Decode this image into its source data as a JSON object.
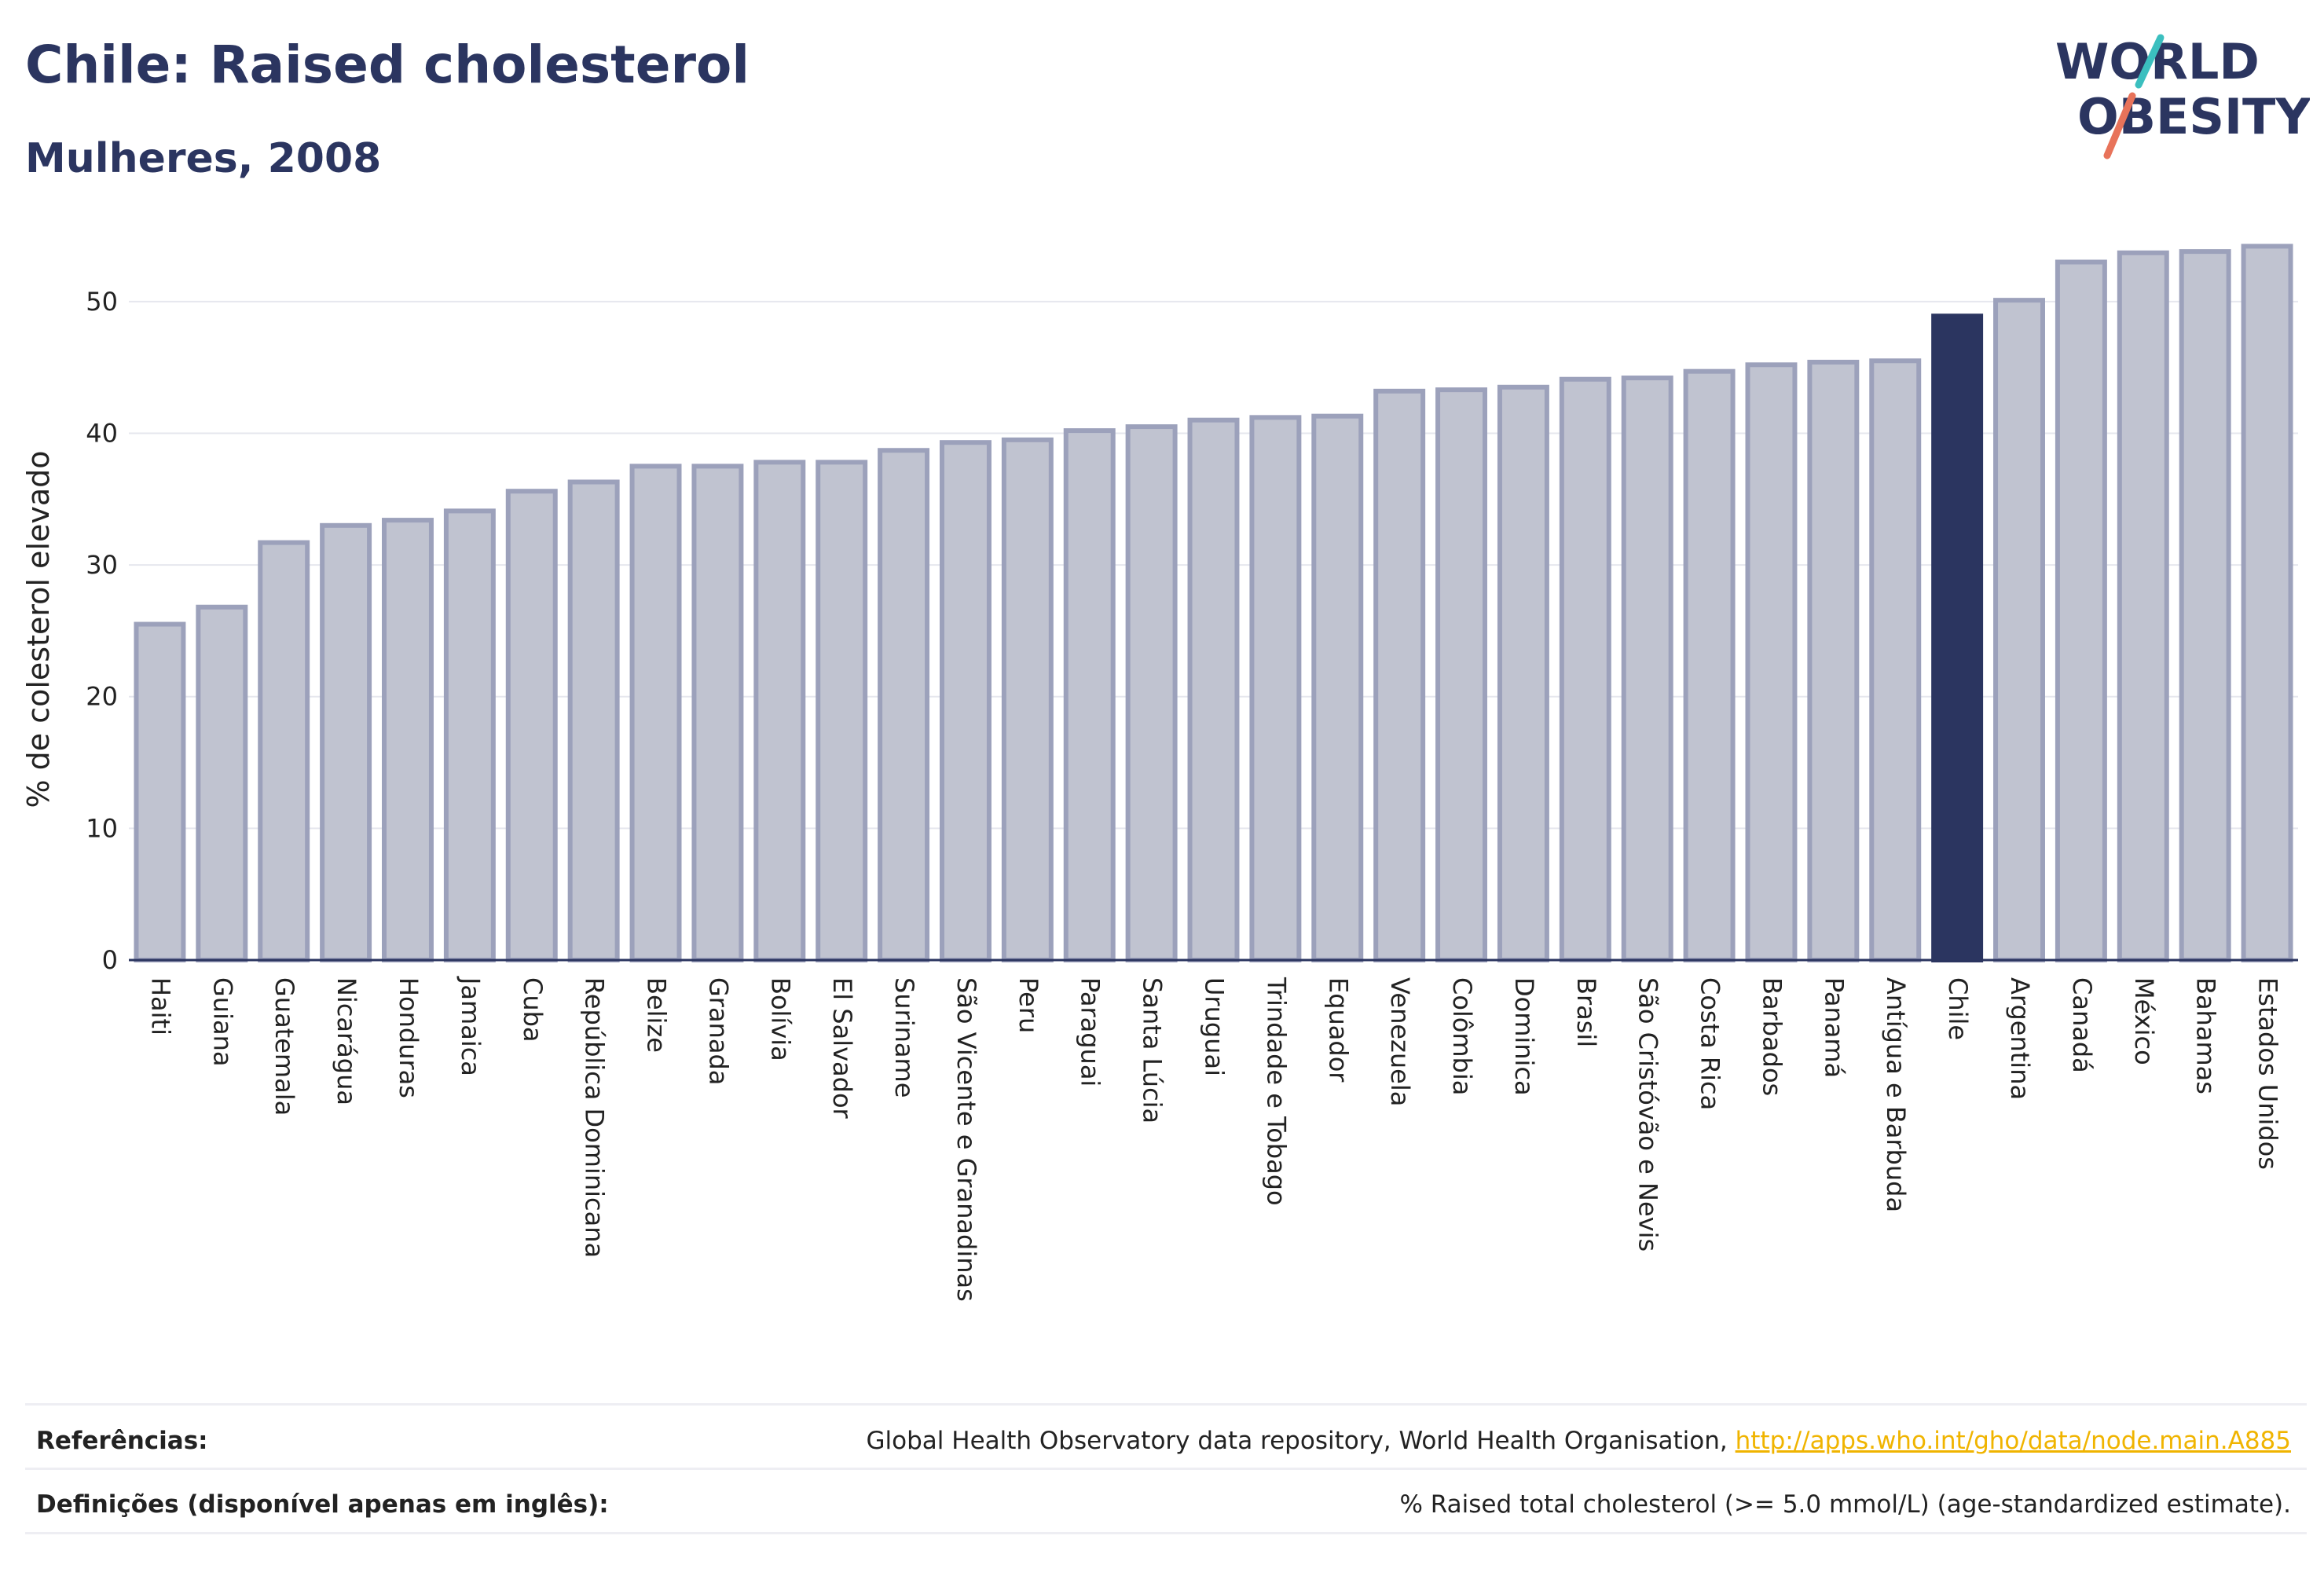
{
  "header": {
    "title": "Chile: Raised cholesterol",
    "subtitle": "Mulheres, 2008",
    "logo_line1": "WORLD",
    "logo_line2": "OBESITY"
  },
  "colors": {
    "navy": "#2b3560",
    "bar_fill": "#c0c3d0",
    "bar_stroke": "#9ca1bb",
    "highlight": "#2b3560",
    "logo_teal": "#3bbfbf",
    "logo_coral": "#e8735a",
    "link": "#f0b400"
  },
  "chart_data": {
    "type": "bar",
    "categories": [
      "Haiti",
      "Guiana",
      "Guatemala",
      "Nicarágua",
      "Honduras",
      "Jamaica",
      "Cuba",
      "República Dominicana",
      "Belize",
      "Granada",
      "Bolívia",
      "El Salvador",
      "Suriname",
      "São Vicente e Granadinas",
      "Peru",
      "Paraguai",
      "Santa Lúcia",
      "Uruguai",
      "Trindade e Tobago",
      "Equador",
      "Venezuela",
      "Colômbia",
      "Dominica",
      "Brasil",
      "São Cristóvão e Nevis",
      "Costa Rica",
      "Barbados",
      "Panamá",
      "Antígua e Barbuda",
      "Chile",
      "Argentina",
      "Canadá",
      "México",
      "Bahamas",
      "Estados Unidos"
    ],
    "values": [
      25.5,
      26.8,
      31.7,
      33.0,
      33.4,
      34.1,
      35.6,
      36.3,
      37.5,
      37.5,
      37.8,
      37.8,
      38.7,
      39.3,
      39.5,
      40.2,
      40.5,
      41.0,
      41.2,
      41.3,
      43.2,
      43.3,
      43.5,
      44.1,
      44.2,
      44.7,
      45.2,
      45.4,
      45.5,
      48.9,
      50.1,
      53.0,
      53.7,
      53.8,
      54.2
    ],
    "highlight": "Chile",
    "ylabel": "% de colesterol elevado",
    "xlabel": "",
    "ylim": [
      0,
      55
    ],
    "yticks": [
      0,
      10,
      20,
      30,
      40,
      50
    ],
    "grid": true,
    "legend": "none"
  },
  "footer": {
    "references_label": "Referências:",
    "references_text": "Global Health Observatory data repository, World Health Organisation, ",
    "references_link": "http://apps.who.int/gho/data/node.main.A885",
    "definitions_label": "Definições (disponível apenas em inglês):",
    "definitions_text": "% Raised total cholesterol (>= 5.0 mmol/L) (age-standardized estimate)."
  }
}
